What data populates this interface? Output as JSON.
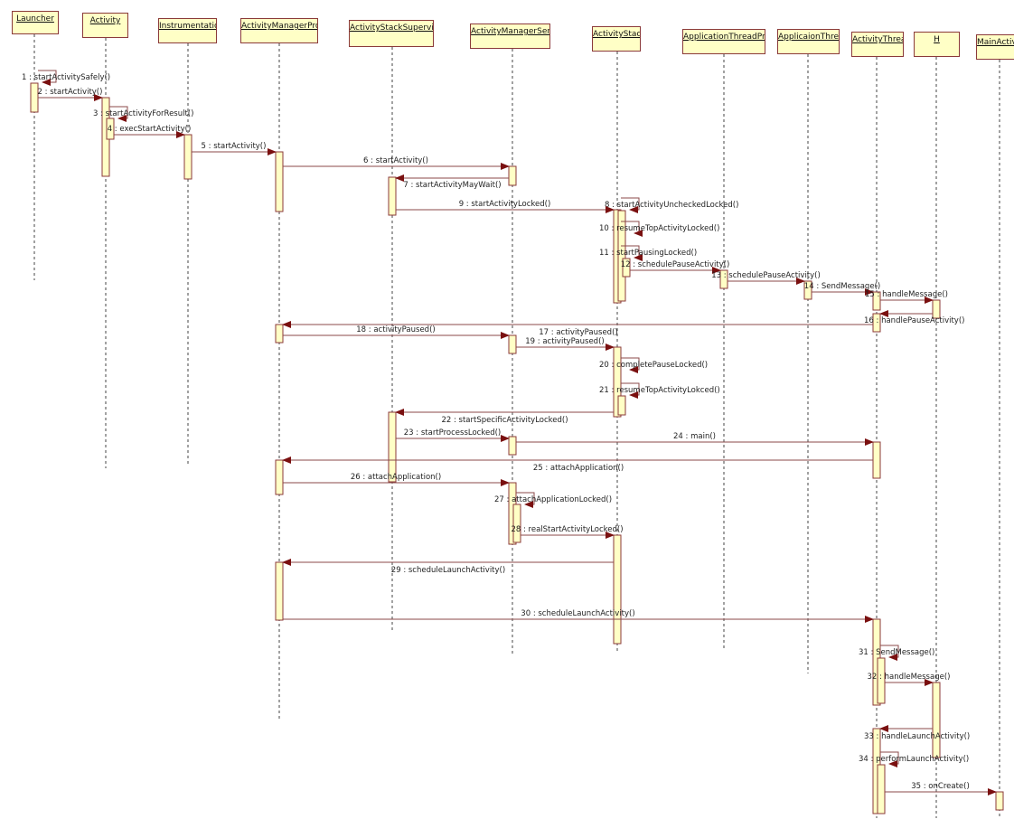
{
  "colors": {
    "box_fill": "#ffffc6",
    "box_border": "#8b3a3a",
    "arrow": "#7a1010",
    "line": "#8b4a4a"
  },
  "participants": [
    {
      "id": "Launcher",
      "name": "Launcher"
    },
    {
      "id": "Activity",
      "name": "Activity"
    },
    {
      "id": "Instrumentation",
      "name": "Instrumentation"
    },
    {
      "id": "ActivityManagerProxy",
      "name": "ActivityManagerProxy"
    },
    {
      "id": "ActivityStackSupervisor",
      "name": "ActivityStackSupervisor"
    },
    {
      "id": "ActivityManagerService",
      "name": "ActivityManagerService"
    },
    {
      "id": "ActivityStack",
      "name": "ActivityStack"
    },
    {
      "id": "ApplicationThreadProxy",
      "name": "ApplicationThreadProxy"
    },
    {
      "id": "ApplicaionThread",
      "name": "ApplicaionThread"
    },
    {
      "id": "ActivityThread",
      "name": "ActivityThread"
    },
    {
      "id": "H",
      "name": "H"
    },
    {
      "id": "MainActivity",
      "name": "MainActivity"
    }
  ],
  "messages": [
    {
      "label": "1 : startActivitySafely()",
      "from": "Launcher",
      "to": "Launcher"
    },
    {
      "label": "2 : startActivity()",
      "from": "Launcher",
      "to": "Activity"
    },
    {
      "label": "3 : startActivityForResult()",
      "from": "Activity",
      "to": "Activity"
    },
    {
      "label": "4 : execStartActivity()",
      "from": "Activity",
      "to": "Instrumentation"
    },
    {
      "label": "5 : startActivity()",
      "from": "Instrumentation",
      "to": "ActivityManagerProxy"
    },
    {
      "label": "6 : startActivity()",
      "from": "ActivityManagerProxy",
      "to": "ActivityManagerService"
    },
    {
      "label": "7 : startActivityMayWait()",
      "from": "ActivityManagerService",
      "to": "ActivityStackSupervisor"
    },
    {
      "label": "8 : startActivityUncheckedLocked()",
      "from": "ActivityStack",
      "to": "ActivityStack"
    },
    {
      "label": "9 : startActivityLocked()",
      "from": "ActivityStackSupervisor",
      "to": "ActivityStack"
    },
    {
      "label": "10 : resumeTopActivityLocked()",
      "from": "ActivityStack",
      "to": "ActivityStack"
    },
    {
      "label": "11 : startPausingLocked()",
      "from": "ActivityStack",
      "to": "ActivityStack"
    },
    {
      "label": "12 : schedulePauseActivity()",
      "from": "ActivityStack",
      "to": "ApplicationThreadProxy"
    },
    {
      "label": "13 : schedulePauseActivity()",
      "from": "ApplicationThreadProxy",
      "to": "ApplicaionThread"
    },
    {
      "label": "14 : SendMessage()",
      "from": "ApplicaionThread",
      "to": "ActivityThread"
    },
    {
      "label": "15 : handleMessage()",
      "from": "ActivityThread",
      "to": "H"
    },
    {
      "label": "16 : handlePauseActivity()",
      "from": "H",
      "to": "ActivityThread"
    },
    {
      "label": "17 : activityPaused()",
      "from": "ActivityThread",
      "to": "ActivityManagerProxy"
    },
    {
      "label": "18 : activityPaused()",
      "from": "ActivityManagerProxy",
      "to": "ActivityManagerService"
    },
    {
      "label": "19 : activityPaused()",
      "from": "ActivityManagerService",
      "to": "ActivityStack"
    },
    {
      "label": "20 : completePauseLocked()",
      "from": "ActivityStack",
      "to": "ActivityStack"
    },
    {
      "label": "21 : resumeTopActivityLokced()",
      "from": "ActivityStack",
      "to": "ActivityStack"
    },
    {
      "label": "22 : startSpecificActivityLocked()",
      "from": "ActivityStack",
      "to": "ActivityStackSupervisor"
    },
    {
      "label": "23 : startProcessLocked()",
      "from": "ActivityStackSupervisor",
      "to": "ActivityManagerService"
    },
    {
      "label": "24 : main()",
      "from": "ActivityManagerService",
      "to": "ActivityThread"
    },
    {
      "label": "25 : attachApplication()",
      "from": "ActivityThread",
      "to": "ActivityManagerProxy"
    },
    {
      "label": "26 : attachApplication()",
      "from": "ActivityManagerProxy",
      "to": "ActivityManagerService"
    },
    {
      "label": "27 : attachApplicationLocked()",
      "from": "ActivityManagerService",
      "to": "ActivityManagerService"
    },
    {
      "label": "28 : realStartActivityLocked()",
      "from": "ActivityManagerService",
      "to": "ActivityStack"
    },
    {
      "label": "29 : scheduleLaunchActivity()",
      "from": "ActivityStack",
      "to": "ActivityManagerProxy"
    },
    {
      "label": "30 : scheduleLaunchActivity()",
      "from": "ActivityManagerProxy",
      "to": "ActivityThread"
    },
    {
      "label": "31 : SendMessage()",
      "from": "ActivityThread",
      "to": "ActivityThread"
    },
    {
      "label": "32 : handleMessage()",
      "from": "ActivityThread",
      "to": "H"
    },
    {
      "label": "33 : handleLaunchActivity()",
      "from": "H",
      "to": "ActivityThread"
    },
    {
      "label": "34 : performLaunchActivity()",
      "from": "ActivityThread",
      "to": "ActivityThread"
    },
    {
      "label": "35 : onCreate()",
      "from": "ActivityThread",
      "to": "MainActivity"
    }
  ]
}
